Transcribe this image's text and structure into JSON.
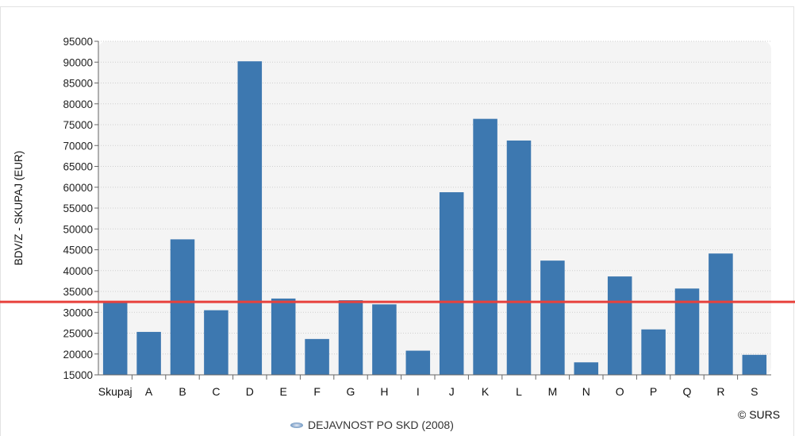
{
  "chart_data": {
    "type": "bar",
    "ylabel": "BDV/Z - SKUPAJ (EUR)",
    "ylim": [
      15000,
      95000
    ],
    "y_ticks": [
      15000,
      20000,
      25000,
      30000,
      35000,
      40000,
      45000,
      50000,
      55000,
      60000,
      65000,
      70000,
      75000,
      80000,
      85000,
      90000,
      95000
    ],
    "categories": [
      "Skupaj",
      "A",
      "B",
      "C",
      "D",
      "E",
      "F",
      "G",
      "H",
      "I",
      "J",
      "K",
      "L",
      "M",
      "N",
      "O",
      "P",
      "Q",
      "R",
      "S"
    ],
    "series": [
      {
        "values": [
          32500,
          25300,
          47500,
          30500,
          90200,
          33300,
          23600,
          32900,
          31900,
          20800,
          58800,
          76400,
          71200,
          42400,
          18000,
          38600,
          25900,
          35700,
          44100,
          19800
        ]
      }
    ],
    "reference_line": 32500,
    "grid": true,
    "bar_color": "#3d78b0",
    "reference_color": "#e8413c",
    "plot_background": "#f4f4f4"
  },
  "legend": {
    "label": "DEJAVNOST PO SKD (2008)",
    "placement": "bottom"
  },
  "copyright": "© SURS"
}
